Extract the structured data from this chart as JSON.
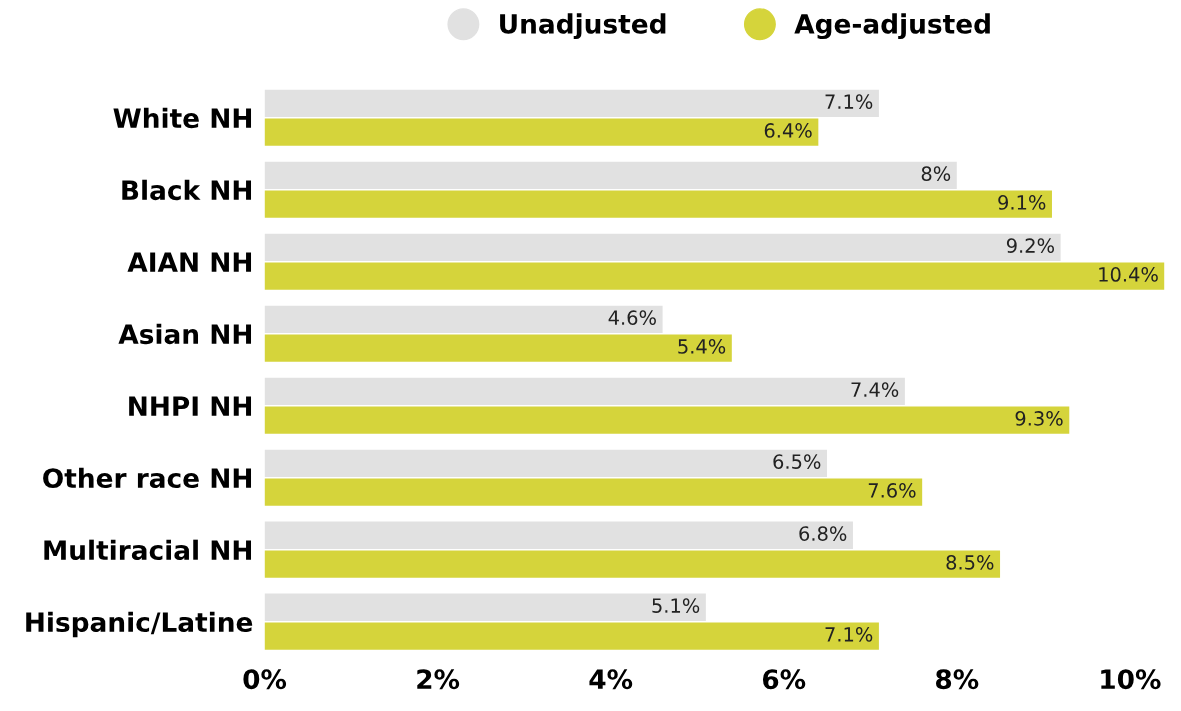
{
  "chart_data": {
    "type": "bar",
    "orientation": "horizontal",
    "categories": [
      "White NH",
      "Black NH",
      "AIAN NH",
      "Asian NH",
      "NHPI NH",
      "Other race NH",
      "Multiracial NH",
      "Hispanic/Latine"
    ],
    "series": [
      {
        "name": "Unadjusted",
        "color": "#e1e1e1",
        "values": [
          7.1,
          8,
          9.2,
          4.6,
          7.4,
          6.5,
          6.8,
          5.1
        ],
        "value_labels": [
          "7.1%",
          "8%",
          "9.2%",
          "4.6%",
          "7.4%",
          "6.5%",
          "6.8%",
          "5.1%"
        ]
      },
      {
        "name": "Age-adjusted",
        "color": "#d5d43b",
        "values": [
          6.4,
          9.1,
          10.4,
          5.4,
          9.3,
          7.6,
          8.5,
          7.1
        ],
        "value_labels": [
          "6.4%",
          "9.1%",
          "10.4%",
          "5.4%",
          "9.3%",
          "7.6%",
          "8.5%",
          "7.1%"
        ]
      }
    ],
    "xlim": [
      0,
      10.4
    ],
    "xticks": [
      {
        "value": 0,
        "label": "0%"
      },
      {
        "value": 2,
        "label": "2%"
      },
      {
        "value": 4,
        "label": "4%"
      },
      {
        "value": 6,
        "label": "6%"
      },
      {
        "value": 8,
        "label": "8%"
      },
      {
        "value": 10,
        "label": "10%"
      }
    ],
    "grid": false,
    "legend": "top"
  }
}
